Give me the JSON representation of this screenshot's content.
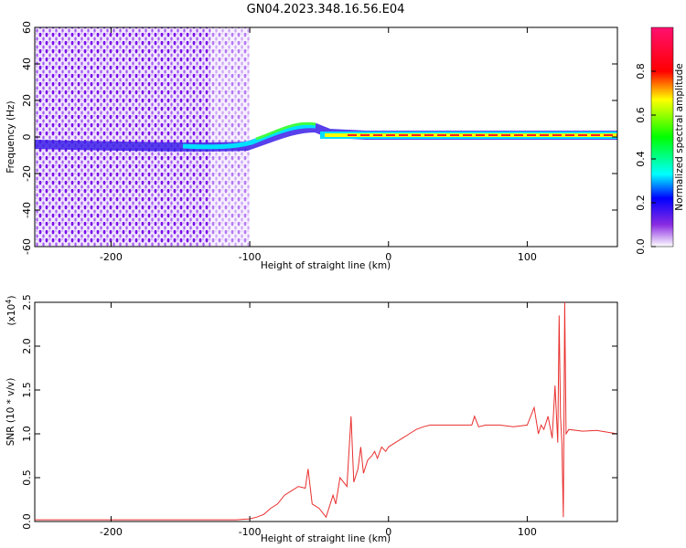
{
  "figure_title": "GN04.2023.348.16.56.E04",
  "chart_data": [
    {
      "type": "heatmap",
      "xlabel": "Height of straight line (km)",
      "ylabel": "Frequency (Hz)",
      "xlim": [
        -255,
        165
      ],
      "ylim": [
        -60,
        60
      ],
      "x_ticks": [
        "-200",
        "-100",
        "0",
        "100"
      ],
      "y_ticks": [
        "-60",
        "-40",
        "-20",
        "0",
        "20",
        "40",
        "60"
      ],
      "ridge": [
        {
          "x": -100,
          "y": -8
        },
        {
          "x": -80,
          "y": -4
        },
        {
          "x": -60,
          "y": 2
        },
        {
          "x": -50,
          "y": 4
        },
        {
          "x": -30,
          "y": 1
        },
        {
          "x": -10,
          "y": -1
        },
        {
          "x": 0,
          "y": 0
        },
        {
          "x": 165,
          "y": 0
        }
      ],
      "colorbar": {
        "label": "Normalized spectral amplitude",
        "range": [
          0,
          1
        ],
        "ticks": [
          "0.0",
          "0.2",
          "0.4",
          "0.6",
          "0.8"
        ]
      }
    },
    {
      "type": "line",
      "xlabel": "Height of straight line (km)",
      "ylabel": "SNR (10 * v/v)",
      "y_scale_label": "(x10",
      "y_scale_exp": "4",
      "y_scale_close": ")",
      "xlim": [
        -255,
        165
      ],
      "ylim": [
        0,
        2.5
      ],
      "x_ticks": [
        "-200",
        "-100",
        "0",
        "100"
      ],
      "y_ticks": [
        "0.0",
        "0.5",
        "1.0",
        "1.5",
        "2.0",
        "2.5"
      ],
      "color": "#e8302e",
      "series": [
        {
          "x": [
            -255,
            -200,
            -150,
            -110,
            -100,
            -95,
            -90,
            -85,
            -80,
            -75,
            -70,
            -65,
            -60,
            -58,
            -55,
            -50,
            -45,
            -40,
            -38,
            -35,
            -30,
            -27,
            -25,
            -22,
            -20,
            -18,
            -15,
            -12,
            -10,
            -8,
            -5,
            -2,
            0,
            5,
            10,
            15,
            20,
            25,
            30,
            40,
            50,
            60,
            62,
            65,
            70,
            80,
            90,
            100,
            105,
            108,
            110,
            112,
            115,
            118,
            120,
            122,
            123,
            124,
            125,
            126,
            127,
            128,
            130,
            140,
            150,
            165
          ],
          "y": [
            0.02,
            0.02,
            0.02,
            0.02,
            0.03,
            0.05,
            0.08,
            0.15,
            0.2,
            0.3,
            0.35,
            0.4,
            0.38,
            0.6,
            0.2,
            0.15,
            0.05,
            0.3,
            0.2,
            0.5,
            0.4,
            1.2,
            0.45,
            0.6,
            0.85,
            0.55,
            0.7,
            0.75,
            0.8,
            0.72,
            0.85,
            0.8,
            0.85,
            0.9,
            0.95,
            1.0,
            1.05,
            1.08,
            1.1,
            1.1,
            1.1,
            1.1,
            1.2,
            1.08,
            1.1,
            1.1,
            1.08,
            1.1,
            1.3,
            1.0,
            1.1,
            1.05,
            1.2,
            0.95,
            1.55,
            0.9,
            2.35,
            1.2,
            0.9,
            0.05,
            2.5,
            1.0,
            1.05,
            1.03,
            1.04,
            1.0
          ]
        }
      ]
    }
  ]
}
